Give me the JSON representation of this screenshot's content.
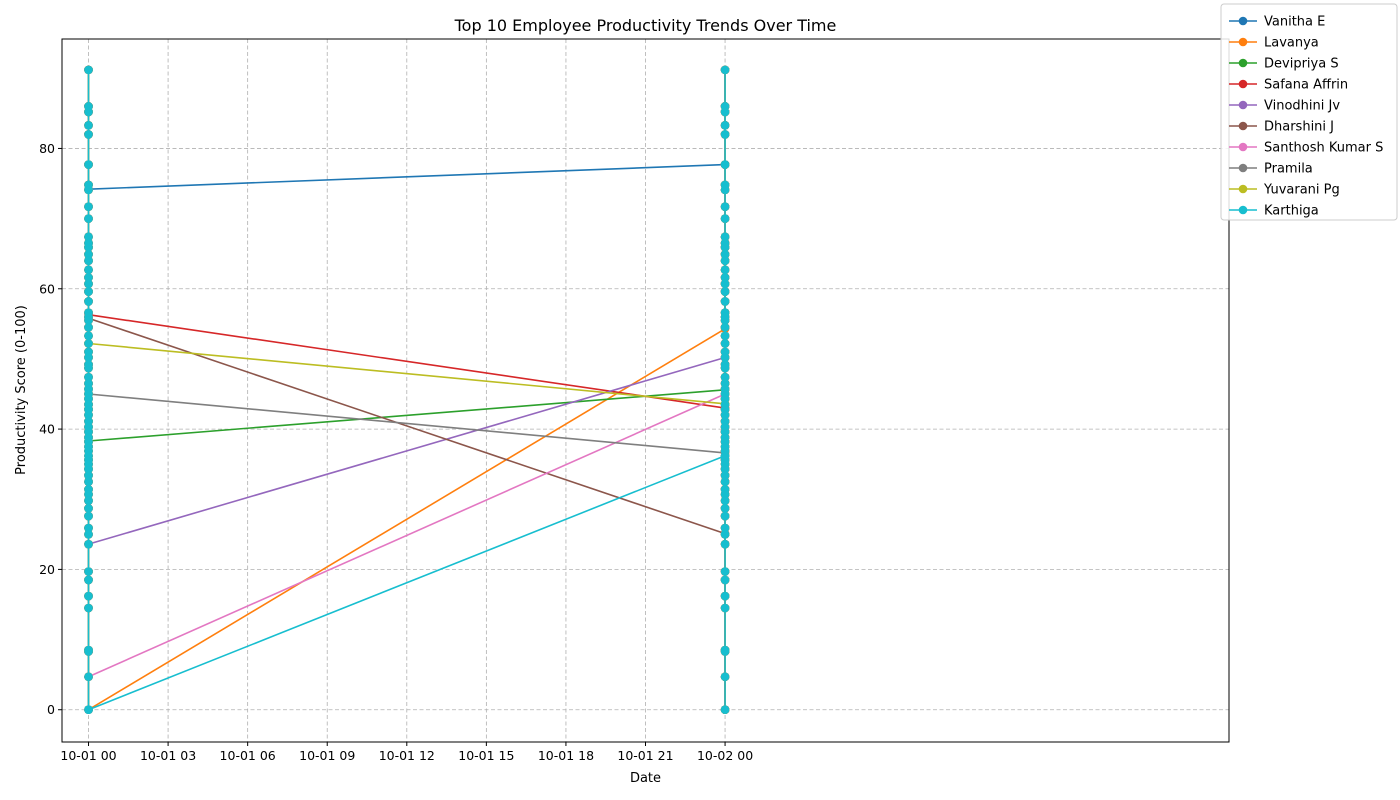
{
  "chart_data": {
    "type": "line",
    "title": "Top 10 Employee Productivity Trends Over Time",
    "xlabel": "Date",
    "ylabel": "Productivity Score (0-100)",
    "x_ticks": [
      "10-01 00",
      "10-01 03",
      "10-01 06",
      "10-01 09",
      "10-01 12",
      "10-01 15",
      "10-01 18",
      "10-01 21",
      "10-02 00"
    ],
    "x_range_hours": [
      -1.0,
      43.0
    ],
    "ylim": [
      -4.6,
      95.6
    ],
    "y_ticks": [
      0,
      20,
      40,
      60,
      80
    ],
    "grid": true,
    "legend_position": "upper right, outside plot",
    "column_points": [
      91.2,
      86.0,
      85.2,
      83.3,
      82.0,
      77.7,
      74.8,
      74.1,
      71.7,
      70.0,
      67.4,
      66.5,
      65.9,
      64.9,
      64.0,
      62.7,
      61.6,
      60.7,
      59.6,
      58.2,
      56.6,
      56.0,
      55.5,
      54.5,
      53.3,
      52.2,
      51.0,
      50.2,
      49.2,
      48.7,
      47.4,
      46.5,
      45.7,
      45.0,
      44.3,
      43.5,
      42.8,
      42.0,
      41.1,
      40.3,
      39.6,
      38.8,
      38.2,
      37.5,
      36.9,
      36.2,
      35.6,
      35.0,
      34.3,
      33.4,
      32.5,
      31.4,
      30.7,
      29.8,
      28.7,
      27.6,
      25.9,
      25.0,
      23.6,
      19.7,
      18.5,
      16.2,
      14.5,
      8.5,
      8.3,
      4.7,
      0.0
    ],
    "series": [
      {
        "name": "Vanitha E",
        "color": "#1f77b4",
        "x": [
          "10-01 00",
          "10-02 00"
        ],
        "y": [
          74.2,
          77.7
        ]
      },
      {
        "name": "Lavanya",
        "color": "#ff7f0e",
        "x": [
          "10-01 00",
          "10-02 00"
        ],
        "y": [
          0.0,
          54.3
        ]
      },
      {
        "name": "Devipriya S",
        "color": "#2ca02c",
        "x": [
          "10-01 00",
          "10-02 00"
        ],
        "y": [
          38.3,
          45.6
        ]
      },
      {
        "name": "Safana Affrin",
        "color": "#d62728",
        "x": [
          "10-01 00",
          "10-02 00"
        ],
        "y": [
          56.3,
          43.0
        ]
      },
      {
        "name": "Vinodhini Jv",
        "color": "#9467bd",
        "x": [
          "10-01 00",
          "10-02 00"
        ],
        "y": [
          23.6,
          50.2
        ]
      },
      {
        "name": "Dharshini J",
        "color": "#8c564b",
        "x": [
          "10-01 00",
          "10-02 00"
        ],
        "y": [
          55.8,
          25.1
        ]
      },
      {
        "name": "Santhosh Kumar S",
        "color": "#e377c2",
        "x": [
          "10-01 00",
          "10-02 00"
        ],
        "y": [
          4.7,
          45.0
        ]
      },
      {
        "name": "Pramila",
        "color": "#7f7f7f",
        "x": [
          "10-01 00",
          "10-02 00"
        ],
        "y": [
          45.0,
          36.6
        ]
      },
      {
        "name": "Yuvarani Pg",
        "color": "#bcbd22",
        "x": [
          "10-01 00",
          "10-02 00"
        ],
        "y": [
          52.2,
          43.6
        ]
      },
      {
        "name": "Karthiga",
        "color": "#17becf",
        "x": [
          "10-01 00",
          "10-02 00"
        ],
        "y": [
          0.0,
          36.2
        ]
      }
    ]
  }
}
